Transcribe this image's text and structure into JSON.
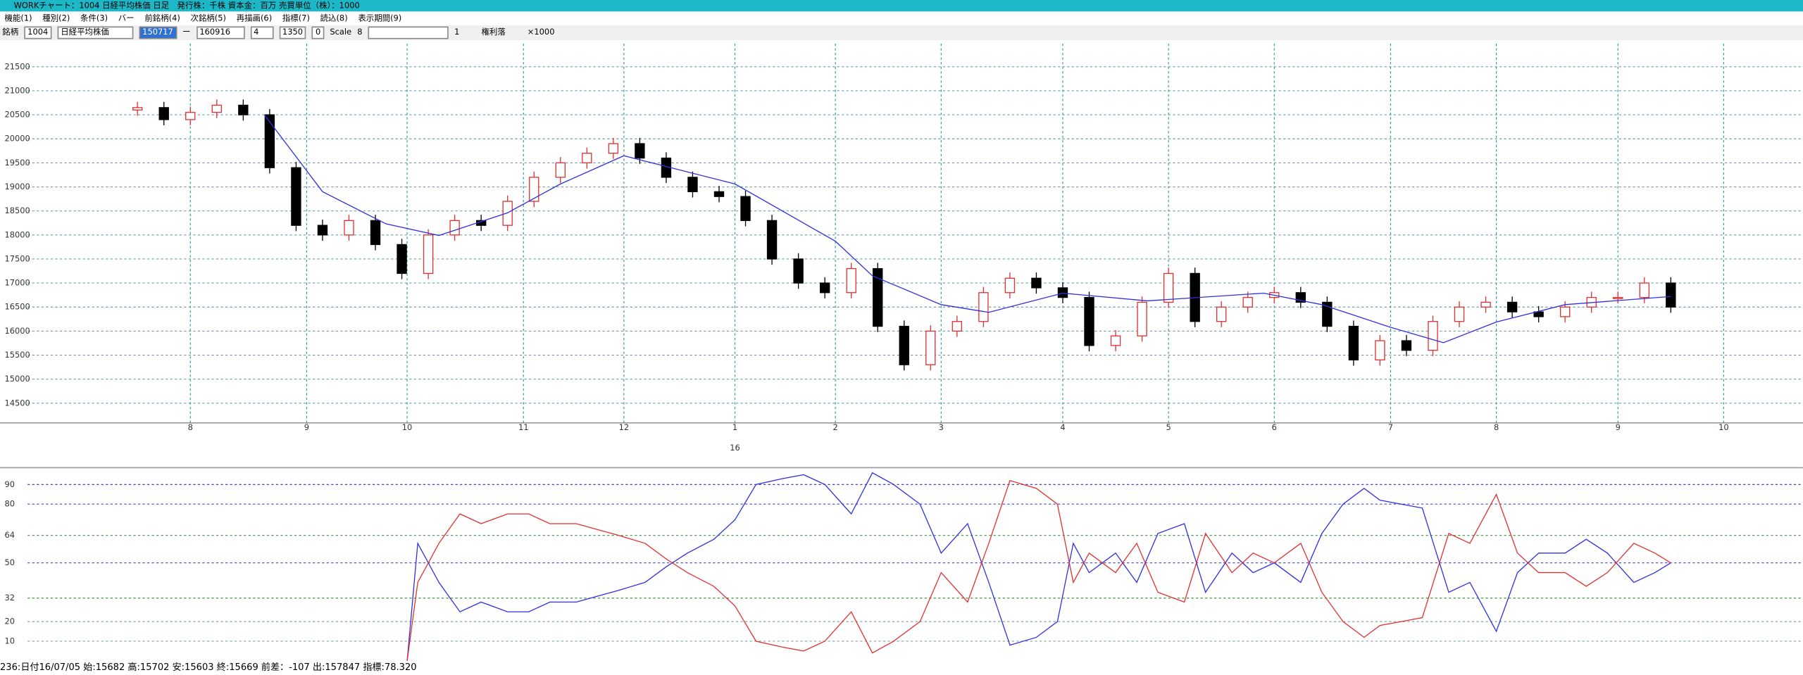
{
  "window": {
    "title": "WORKチャート：1004 日経平均株価 日足　発行株：千株 資本金：百万 売買単位（株）：1000"
  },
  "menu": [
    "機能(1)",
    "種別(2)",
    "条件(3)",
    "バー",
    "前銘柄(4)",
    "次銘柄(5)",
    "再描画(6)",
    "指標(7)",
    "読込(8)",
    "表示期間(9)"
  ],
  "toolbar": {
    "label": "銘柄",
    "code": "1004",
    "name": "日経平均株価",
    "from": "150717",
    "dash": "ー",
    "to": "160916",
    "field1": "4",
    "field2": "1350",
    "field3": "0",
    "scale": "Scale",
    "field4": "8",
    "field5": "1",
    "rights": "権利落",
    "x1000": "×1000"
  },
  "chart_data": [
    {
      "type": "candlestick",
      "up_color": "#e03030",
      "down_color": "#000000",
      "grid": true,
      "xlim": [
        -26,
        315
      ],
      "ylim": [
        14090,
        21980
      ],
      "yticks": [
        14500,
        15000,
        15500,
        16000,
        16500,
        17000,
        17500,
        18000,
        18500,
        19000,
        19500,
        20000,
        20500,
        21000,
        21500
      ],
      "xticks": [
        {
          "value": 10,
          "label": "8"
        },
        {
          "value": 32,
          "label": "9"
        },
        {
          "value": 51,
          "label": "10"
        },
        {
          "value": 73,
          "label": "11"
        },
        {
          "value": 92,
          "label": "12"
        },
        {
          "value": 113,
          "label": "1"
        },
        {
          "value": 132,
          "label": "2"
        },
        {
          "value": 152,
          "label": "3"
        },
        {
          "value": 175,
          "label": "4"
        },
        {
          "value": 195,
          "label": "5"
        },
        {
          "value": 215,
          "label": "6"
        },
        {
          "value": 237,
          "label": "7"
        },
        {
          "value": 257,
          "label": "8"
        },
        {
          "value": 280,
          "label": "9"
        },
        {
          "value": 300,
          "label": "10"
        }
      ],
      "year_label": {
        "value": 113,
        "label": "16"
      },
      "x": [
        0,
        5,
        10,
        15,
        20,
        25,
        30,
        35,
        40,
        45,
        50,
        55,
        60,
        65,
        70,
        75,
        80,
        85,
        90,
        95,
        100,
        105,
        110,
        115,
        120,
        125,
        130,
        135,
        140,
        145,
        150,
        155,
        160,
        165,
        170,
        175,
        180,
        185,
        190,
        195,
        200,
        205,
        210,
        215,
        220,
        225,
        230,
        235,
        240,
        245,
        250,
        255,
        260,
        265,
        270,
        275,
        280,
        285,
        290
      ],
      "open": [
        20600,
        20650,
        20400,
        20550,
        20700,
        20500,
        19400,
        18200,
        18000,
        18300,
        17800,
        17200,
        18000,
        18300,
        18200,
        18700,
        19200,
        19500,
        19700,
        19900,
        19600,
        19200,
        18900,
        18800,
        18300,
        17500,
        17000,
        16800,
        17300,
        16100,
        15300,
        16000,
        16200,
        16800,
        17100,
        16900,
        16700,
        15700,
        15900,
        16600,
        17200,
        16200,
        16500,
        16700,
        16800,
        16600,
        16100,
        15400,
        15800,
        15600,
        16200,
        16500,
        16600,
        16400,
        16300,
        16500,
        16700,
        16700,
        17000
      ],
      "high": [
        20770,
        20770,
        20670,
        20820,
        20820,
        20620,
        19520,
        18320,
        18420,
        18420,
        17920,
        18120,
        18420,
        18420,
        18820,
        19320,
        19620,
        19820,
        20020,
        20020,
        19720,
        19320,
        19020,
        18920,
        18420,
        17620,
        17120,
        17420,
        17420,
        16220,
        16120,
        16320,
        16920,
        17220,
        17220,
        17020,
        16820,
        16020,
        16720,
        17320,
        17320,
        16620,
        16820,
        16920,
        16920,
        16720,
        16220,
        15920,
        15920,
        16320,
        16620,
        16720,
        16720,
        16520,
        16620,
        16820,
        16820,
        17120,
        17120
      ],
      "low": [
        20480,
        20280,
        20280,
        20430,
        20380,
        19280,
        18080,
        17880,
        17880,
        17680,
        17080,
        17080,
        17880,
        18080,
        18080,
        18580,
        19080,
        19380,
        19580,
        19480,
        19080,
        18780,
        18680,
        18180,
        17380,
        16880,
        16680,
        16680,
        15980,
        15180,
        15180,
        15880,
        16080,
        16680,
        16780,
        16580,
        15580,
        15580,
        15780,
        16480,
        16080,
        16080,
        16380,
        16580,
        16480,
        15980,
        15280,
        15280,
        15480,
        15480,
        16080,
        16380,
        16280,
        16180,
        16180,
        16380,
        16580,
        16580,
        16380
      ],
      "close": [
        20650,
        20400,
        20550,
        20700,
        20500,
        19400,
        18200,
        18000,
        18300,
        17800,
        17200,
        18000,
        18300,
        18200,
        18700,
        19200,
        19500,
        19700,
        19900,
        19600,
        19200,
        18900,
        18800,
        18300,
        17500,
        17000,
        16800,
        17300,
        16100,
        15300,
        16000,
        16200,
        16800,
        17100,
        16900,
        16700,
        15700,
        15900,
        16600,
        17200,
        16200,
        16500,
        16700,
        16800,
        16600,
        16100,
        15400,
        15800,
        15600,
        16200,
        16500,
        16600,
        16400,
        16300,
        16500,
        16700,
        16700,
        17000,
        16500
      ],
      "lines": [
        {
          "color": "#3030e0",
          "x": [
            24,
            35,
            47,
            57,
            70,
            80,
            92,
            113,
            132,
            139,
            152,
            161,
            175,
            191,
            213,
            224,
            237,
            247,
            257,
            270,
            290
          ],
          "values": [
            20500,
            18900,
            18230,
            17990,
            18460,
            19060,
            19650,
            19060,
            17870,
            17150,
            16550,
            16390,
            16790,
            16630,
            16790,
            16550,
            16080,
            15760,
            16190,
            16550,
            16720
          ]
        }
      ]
    },
    {
      "type": "line",
      "xlim": [
        -26,
        315
      ],
      "ylim": [
        0,
        98
      ],
      "yticks": [
        10,
        20,
        32,
        50,
        64,
        80,
        90
      ],
      "grid_colors": [
        "#8aa0a0",
        "#8aa0a0",
        "#3a9a3a",
        "#4040d0",
        "#3a9a3a",
        "#4040d0",
        "#4040d0"
      ],
      "series": [
        {
          "color": "#3030e0",
          "x": [
            51,
            53,
            57,
            61,
            65,
            70,
            74,
            78,
            83,
            87,
            91,
            96,
            100,
            104,
            109,
            113,
            117,
            122,
            126,
            130,
            135,
            139,
            143,
            148,
            152,
            157,
            161,
            165,
            170,
            174,
            177,
            180,
            185,
            189,
            193,
            198,
            202,
            207,
            211,
            215,
            220,
            224,
            228,
            232,
            235,
            239,
            243,
            248,
            252,
            257,
            261,
            265,
            270,
            274,
            278,
            283,
            287,
            290
          ],
          "values": [
            0,
            60,
            40,
            25,
            30,
            25,
            25,
            30,
            30,
            33,
            36,
            40,
            48,
            55,
            62,
            72,
            90,
            93,
            95,
            90,
            75,
            96,
            90,
            80,
            55,
            70,
            40,
            8,
            12,
            20,
            60,
            45,
            55,
            40,
            65,
            70,
            35,
            55,
            45,
            50,
            40,
            65,
            80,
            88,
            82,
            80,
            78,
            35,
            40,
            15,
            45,
            55,
            55,
            62,
            55,
            40,
            45,
            50
          ]
        },
        {
          "color": "#e03030",
          "x": [
            51,
            53,
            57,
            61,
            65,
            70,
            74,
            78,
            83,
            87,
            91,
            96,
            100,
            104,
            109,
            113,
            117,
            122,
            126,
            130,
            135,
            139,
            143,
            148,
            152,
            157,
            161,
            165,
            170,
            174,
            177,
            180,
            185,
            189,
            193,
            198,
            202,
            207,
            211,
            215,
            220,
            224,
            228,
            232,
            235,
            239,
            243,
            248,
            252,
            257,
            261,
            265,
            270,
            274,
            278,
            283,
            287,
            290
          ],
          "values": [
            0,
            40,
            60,
            75,
            70,
            75,
            75,
            70,
            70,
            67,
            64,
            60,
            52,
            45,
            38,
            28,
            10,
            7,
            5,
            10,
            25,
            4,
            10,
            20,
            45,
            30,
            60,
            92,
            88,
            80,
            40,
            55,
            45,
            60,
            35,
            30,
            65,
            45,
            55,
            50,
            60,
            35,
            20,
            12,
            18,
            20,
            22,
            65,
            60,
            85,
            55,
            45,
            45,
            38,
            45,
            60,
            55,
            50
          ]
        }
      ]
    }
  ],
  "status": "236:日付16/07/05 始:15682 高:15702 安:15603 終:15669 前差：-107 出:157847 指標:78.320"
}
